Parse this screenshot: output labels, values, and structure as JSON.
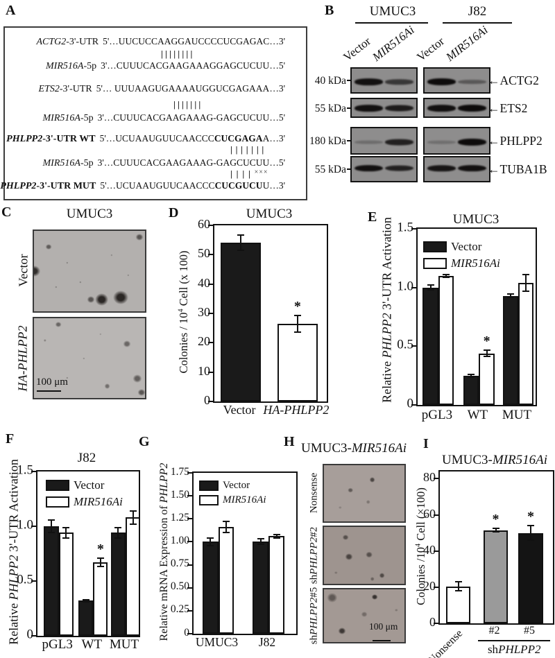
{
  "panelA": {
    "letter": "A",
    "rows": [
      {
        "type": "seq",
        "gene": "ACTG2",
        "rest": "-3'-UTR",
        "bold": false,
        "start": "5'…",
        "p1": "UUCUCCAAGGAUCCCCUCGAGAC",
        "p2": "",
        "p3": "",
        "end": "…3'"
      },
      {
        "type": "bars",
        "pipes": 8,
        "xxx": ""
      },
      {
        "type": "seq",
        "gene": "MIR516A",
        "rest": "-5p",
        "bold": false,
        "start": "3'…",
        "p1": "CUUUCACGAAGAAAGGAGCUCUU",
        "p2": "",
        "p3": "",
        "end": "…5'"
      },
      {
        "type": "seq",
        "gene": "ETS2",
        "rest": "-3'-UTR",
        "bold": false,
        "start": "5'… ",
        "p1": "UUUAAGUGAAAAUGGUCGAGAAA",
        "p2": "",
        "p3": "",
        "end": "…3'"
      },
      {
        "type": "bars",
        "pipes": 7,
        "xxx": ""
      },
      {
        "type": "seq",
        "gene": "MIR516A",
        "rest": "-5p",
        "bold": false,
        "start": "3'…",
        "p1": "CUUUCACGAAGAAAG-GAGCUCUU",
        "p2": "",
        "p3": "",
        "end": "…5'"
      },
      {
        "type": "seq",
        "gene": "PHLPP2",
        "rest": "-3'-UTR WT",
        "bold": true,
        "start": "5'…",
        "p1": "UCUAAUGUUCAACCC",
        "p2": "CUCGAGA",
        "p3": "A",
        "end": "…3'"
      },
      {
        "type": "bars",
        "pipes": 7,
        "xxx": ""
      },
      {
        "type": "seq",
        "gene": "MIR516A",
        "rest": "-5p",
        "bold": false,
        "start": "3'…",
        "p1": "CUUUCACGAAGAAAG-GAGCUCUU",
        "p2": "",
        "p3": "",
        "end": "…5'"
      },
      {
        "type": "bars",
        "pipes": 4,
        "xxx": "×××"
      },
      {
        "type": "seq",
        "gene": "PHLPP2",
        "rest": "-3'-UTR MUT",
        "bold": true,
        "start": "5'…",
        "p1": "UCUAAUGUUCAACCC",
        "p2": "CUCGUCU",
        "p3": "U",
        "end": "…3'"
      }
    ]
  },
  "panelB": {
    "letter": "B",
    "cell_lines": [
      "UMUC3",
      "J82"
    ],
    "lanes": [
      [
        {
          "t": "Vector"
        }
      ],
      [
        {
          "t": "MIR516Ai",
          "i": true
        }
      ],
      [
        {
          "t": "Vector"
        }
      ],
      [
        {
          "t": "MIR516Ai",
          "i": true
        }
      ]
    ],
    "arrow": "←",
    "rows": [
      {
        "kda": "40 kDa",
        "protein": "ACTG2",
        "bandY": 56,
        "bands": [
          0.95,
          0.6,
          1.0,
          0.3
        ]
      },
      {
        "kda": "55 kDa",
        "protein": "ETS2",
        "bandY": 52,
        "bands": [
          0.95,
          0.85,
          0.95,
          1.0
        ]
      },
      {
        "kda": "180 kDa",
        "protein": "PHLPP2",
        "bandY": 56,
        "bands": [
          0.12,
          0.8,
          0.1,
          1.0
        ]
      },
      {
        "kda": "55 kDa",
        "protein": "TUBA1B",
        "bandY": 46,
        "bands": [
          0.95,
          0.8,
          0.9,
          0.95
        ]
      }
    ]
  },
  "panelC": {
    "letter": "C",
    "title": "UMUC3",
    "scalebar": "100 μm",
    "images": [
      {
        "label": [
          {
            "t": "Vector"
          }
        ],
        "bg": "#b3b0ae",
        "spots": [
          [
            13,
            20,
            4,
            0.55
          ],
          [
            95,
            8,
            5,
            0.6
          ],
          [
            0,
            50,
            8,
            0.85
          ],
          [
            51,
            85,
            5,
            0.6
          ],
          [
            61,
            85,
            9,
            0.9
          ],
          [
            78,
            83,
            10,
            0.9
          ],
          [
            30,
            40,
            1.5,
            0.3
          ],
          [
            70,
            30,
            1.5,
            0.25
          ],
          [
            42,
            64,
            1.5,
            0.3
          ],
          [
            85,
            55,
            1.5,
            0.25
          ],
          [
            20,
            70,
            1.5,
            0.3
          ]
        ]
      },
      {
        "label": [
          {
            "t": "HA-PHLPP2",
            "i": true
          }
        ],
        "bg": "#b9b6b4",
        "spots": [
          [
            22,
            8,
            4,
            0.5
          ],
          [
            84,
            32,
            5,
            0.5
          ],
          [
            93,
            76,
            6,
            0.55
          ],
          [
            66,
            85,
            4,
            0.45
          ],
          [
            97,
            93,
            5,
            0.6
          ],
          [
            10,
            28,
            2,
            0.3
          ],
          [
            45,
            50,
            1.5,
            0.25
          ],
          [
            30,
            75,
            1.5,
            0.3
          ],
          [
            60,
            20,
            1.5,
            0.2
          ]
        ]
      }
    ]
  },
  "panelH": {
    "letter": "H",
    "title": [
      {
        "t": "UMUC3-"
      },
      {
        "t": "MIR516Ai",
        "i": true
      }
    ],
    "scalebar": "100 μm",
    "images": [
      {
        "label": [
          {
            "t": "Nonsense"
          }
        ],
        "bg": "#a79e9a",
        "spots": [
          [
            60,
            26,
            4,
            0.65
          ],
          [
            33,
            44,
            3.5,
            0.5
          ],
          [
            55,
            66,
            3,
            0.3
          ],
          [
            20,
            75,
            2,
            0.2
          ]
        ]
      },
      {
        "label": [
          {
            "t": "sh"
          },
          {
            "t": "PHLPP2",
            "i": true
          },
          {
            "t": "#2"
          }
        ],
        "bg": "#9e948f",
        "spots": [
          [
            27,
            18,
            4,
            0.55
          ],
          [
            31,
            52,
            5,
            0.65
          ],
          [
            56,
            49,
            4.5,
            0.55
          ],
          [
            72,
            85,
            4,
            0.6
          ],
          [
            60,
            92,
            3,
            0.4
          ],
          [
            15,
            80,
            2,
            0.25
          ]
        ]
      },
      {
        "label": [
          {
            "t": "sh"
          },
          {
            "t": "PHLPP2",
            "i": true
          },
          {
            "t": "#5"
          }
        ],
        "bg": "#a39994",
        "spots": [
          [
            10,
            16,
            7,
            0.5
          ],
          [
            63,
            14,
            4,
            0.8
          ],
          [
            50,
            47,
            4,
            0.35
          ],
          [
            22,
            79,
            5,
            0.75
          ],
          [
            90,
            40,
            2,
            0.25
          ]
        ]
      }
    ]
  },
  "chart_data": {
    "D": {
      "type": "bar",
      "letter": "D",
      "title": [
        {
          "t": "UMUC3"
        }
      ],
      "ylabel": [
        {
          "t": "Colonies / 10"
        },
        {
          "t": "4",
          "sup": true
        },
        {
          "t": " Cell (x 100)"
        }
      ],
      "ymax": 60,
      "yticks": [
        {
          "v": 0,
          "l": "0"
        },
        {
          "v": 10,
          "l": "10"
        },
        {
          "v": 20,
          "l": "20"
        },
        {
          "v": 30,
          "l": "30"
        },
        {
          "v": 40,
          "l": "40"
        },
        {
          "v": 50,
          "l": "50"
        },
        {
          "v": 60,
          "l": "60"
        }
      ],
      "groups": [
        [
          {
            "t": "Vector"
          }
        ],
        [
          {
            "t": "HA-PHLPP2",
            "i": true
          }
        ]
      ],
      "legend": false,
      "series": [
        {
          "colors": [
            "#1a1a1a",
            "#ffffff"
          ],
          "values": [
            54,
            26.5
          ],
          "errors": [
            2.6,
            2.8
          ],
          "sigs": [
            "",
            "*"
          ]
        }
      ]
    },
    "E": {
      "type": "bar",
      "letter": "E",
      "title": [
        {
          "t": "UMUC3"
        }
      ],
      "ylabel": [
        {
          "t": "Relative "
        },
        {
          "t": "PHLPP2",
          "i": true
        },
        {
          "t": " 3'-UTR Activation"
        }
      ],
      "ymax": 1.5,
      "yticks": [
        {
          "v": 0,
          "l": "0"
        },
        {
          "v": 0.5,
          "l": "0.5"
        },
        {
          "v": 1,
          "l": "1.0"
        },
        {
          "v": 1.5,
          "l": "1.5"
        }
      ],
      "groups": [
        [
          {
            "t": "pGL3"
          }
        ],
        [
          {
            "t": "WT"
          }
        ],
        [
          {
            "t": "MUT"
          }
        ]
      ],
      "legend": true,
      "series": [
        {
          "name": [
            {
              "t": "Vector"
            }
          ],
          "color": "#1a1a1a",
          "values": [
            1.0,
            0.25,
            0.93
          ],
          "errors": [
            0.02,
            0.012,
            0.015
          ],
          "sigs": [
            "",
            "",
            ""
          ]
        },
        {
          "name": [
            {
              "t": "MIR516Ai",
              "i": true
            }
          ],
          "color": "#ffffff",
          "values": [
            1.1,
            0.44,
            1.04
          ],
          "errors": [
            0.012,
            0.025,
            0.07
          ],
          "sigs": [
            "",
            "*",
            ""
          ]
        }
      ]
    },
    "F": {
      "type": "bar",
      "letter": "F",
      "title": [
        {
          "t": "J82"
        }
      ],
      "ylabel": [
        {
          "t": "Relative "
        },
        {
          "t": "PHLPP2",
          "i": true
        },
        {
          "t": " 3'-UTR Activation"
        }
      ],
      "ymax": 1.5,
      "yticks": [
        {
          "v": 0,
          "l": "0"
        },
        {
          "v": 0.5,
          "l": "0.5"
        },
        {
          "v": 1,
          "l": "1.0"
        },
        {
          "v": 1.5,
          "l": "1.5"
        }
      ],
      "groups": [
        [
          {
            "t": "pGL3"
          }
        ],
        [
          {
            "t": "WT"
          }
        ],
        [
          {
            "t": "MUT"
          }
        ]
      ],
      "legend": true,
      "series": [
        {
          "name": [
            {
              "t": "Vector"
            }
          ],
          "color": "#1a1a1a",
          "values": [
            1.0,
            0.32,
            0.94
          ],
          "errors": [
            0.06,
            0.012,
            0.05
          ],
          "sigs": [
            "",
            "",
            ""
          ]
        },
        {
          "name": [
            {
              "t": "MIR516Ai",
              "i": true
            }
          ],
          "color": "#ffffff",
          "values": [
            0.94,
            0.67,
            1.08
          ],
          "errors": [
            0.05,
            0.04,
            0.06
          ],
          "sigs": [
            "",
            "*",
            ""
          ]
        }
      ]
    },
    "G": {
      "type": "bar",
      "letter": "G",
      "title": [],
      "ylabel": [
        {
          "t": "Relative mRNA Expression of "
        },
        {
          "t": "PHLPP2",
          "i": true
        }
      ],
      "ymax": 1.75,
      "yticks": [
        {
          "v": 0,
          "l": "0"
        },
        {
          "v": 0.25,
          "l": "0.25"
        },
        {
          "v": 0.5,
          "l": "0.50"
        },
        {
          "v": 0.75,
          "l": "0.75"
        },
        {
          "v": 1,
          "l": "1.00"
        },
        {
          "v": 1.25,
          "l": "1.25"
        },
        {
          "v": 1.5,
          "l": "1.50"
        },
        {
          "v": 1.75,
          "l": "1.75"
        }
      ],
      "groups": [
        [
          {
            "t": "UMUC3"
          }
        ],
        [
          {
            "t": "J82"
          }
        ]
      ],
      "legend": true,
      "series": [
        {
          "name": [
            {
              "t": "Vector"
            }
          ],
          "color": "#1a1a1a",
          "values": [
            1.0,
            1.0
          ],
          "errors": [
            0.04,
            0.03
          ],
          "sigs": [
            "",
            ""
          ]
        },
        {
          "name": [
            {
              "t": "MIR516Ai",
              "i": true
            }
          ],
          "color": "#ffffff",
          "values": [
            1.16,
            1.06
          ],
          "errors": [
            0.06,
            0.02
          ],
          "sigs": [
            "",
            ""
          ]
        }
      ]
    },
    "I": {
      "type": "bar",
      "letter": "I",
      "title": [
        {
          "t": "UMUC3-"
        },
        {
          "t": "MIR516Ai",
          "i": true
        }
      ],
      "ylabel": [
        {
          "t": "Colonies /10"
        },
        {
          "t": "4",
          "sup": true
        },
        {
          "t": " Cell (×100)"
        }
      ],
      "ymax": 84,
      "yticks": [
        {
          "v": 0,
          "l": "0"
        },
        {
          "v": 20,
          "l": "20"
        },
        {
          "v": 40,
          "l": "40"
        },
        {
          "v": 60,
          "l": "60"
        },
        {
          "v": 80,
          "l": "80"
        }
      ],
      "groups": [
        [
          {
            "t": "Nonsense"
          }
        ],
        [
          {
            "t": "#2"
          }
        ],
        [
          {
            "t": "#5"
          }
        ]
      ],
      "legend": false,
      "rotate_first": true,
      "series": [
        {
          "colors": [
            "#ffffff",
            "#9a9a9a",
            "#141414"
          ],
          "values": [
            20.5,
            51.5,
            50
          ],
          "errors": [
            2.5,
            1,
            4
          ],
          "sigs": [
            "",
            "*",
            "*"
          ]
        }
      ],
      "annotation": {
        "x1": 35,
        "x2": 99,
        "cx": 67,
        "label": [
          {
            "t": "sh"
          },
          {
            "t": "PHLPP2",
            "i": true
          }
        ]
      }
    }
  }
}
